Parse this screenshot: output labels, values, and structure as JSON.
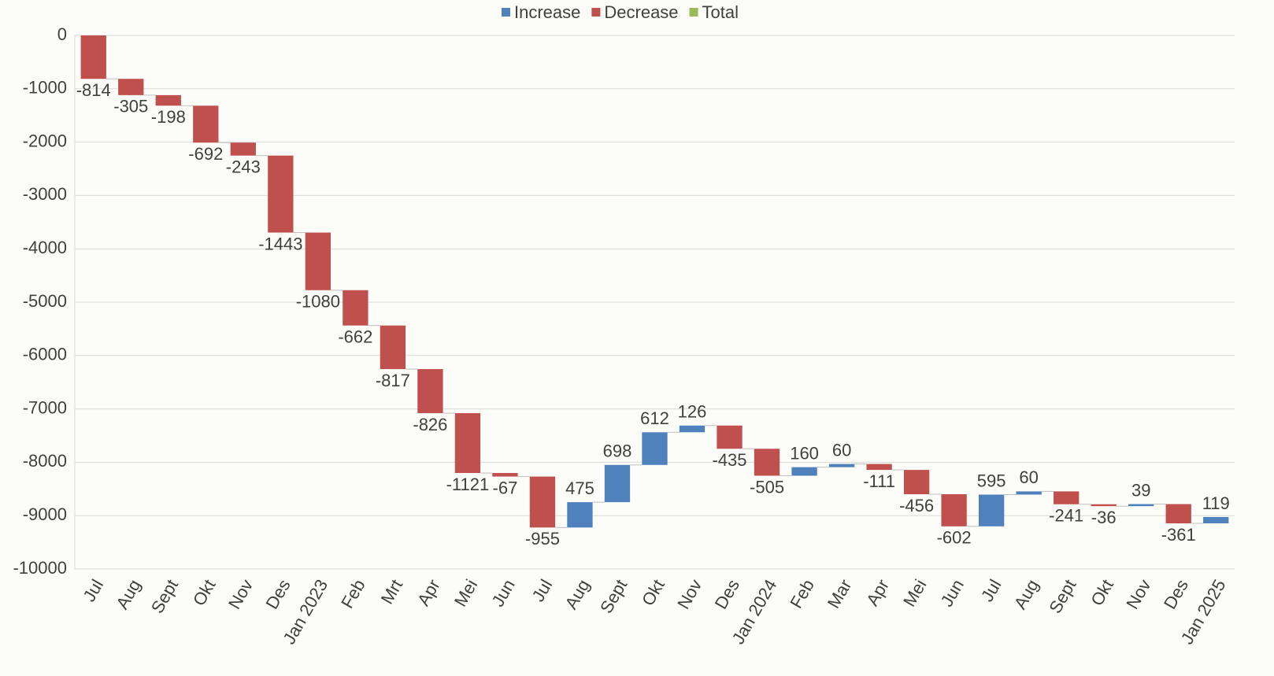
{
  "chart_data": {
    "type": "waterfall",
    "categories": [
      "Jul",
      "Aug",
      "Sept",
      "Okt",
      "Nov",
      "Des",
      "Jan 2023",
      "Feb",
      "Mrt",
      "Apr",
      "Mei",
      "Jun",
      "Jul",
      "Aug",
      "Sept",
      "Okt",
      "Nov",
      "Des",
      "Jan 2024",
      "Feb",
      "Mar",
      "Apr",
      "Mei",
      "Jun",
      "Jul",
      "Aug",
      "Sept",
      "Okt",
      "Nov",
      "Des",
      "Jan 2025"
    ],
    "values": [
      -814,
      -305,
      -198,
      -692,
      -243,
      -1443,
      -1080,
      -662,
      -817,
      -826,
      -1121,
      -67,
      -955,
      475,
      698,
      612,
      126,
      -435,
      -505,
      160,
      60,
      -111,
      -456,
      -602,
      595,
      60,
      -241,
      -36,
      39,
      -361,
      119
    ],
    "legend": [
      {
        "name": "Increase",
        "color": "#4f81bd"
      },
      {
        "name": "Decrease",
        "color": "#c0504d"
      },
      {
        "name": "Total",
        "color": "#9bbb59"
      }
    ],
    "legend_position": "top",
    "ylim": [
      -10000,
      0
    ],
    "yticks": [
      0,
      -1000,
      -2000,
      -3000,
      -4000,
      -5000,
      -6000,
      -7000,
      -8000,
      -9000,
      -10000
    ],
    "grid": true
  }
}
